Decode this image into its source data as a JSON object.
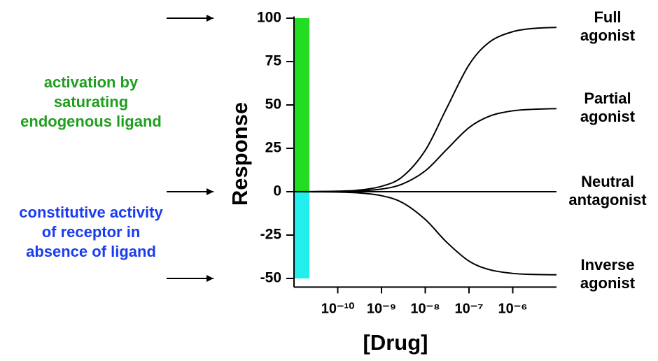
{
  "chart_data": {
    "type": "line",
    "x_label": "[Drug]",
    "y_label": "Response",
    "xscale": "log",
    "xlim": [
      1e-11,
      1e-05
    ],
    "xticks": [
      {
        "value": 1e-10,
        "label": "10⁻¹⁰"
      },
      {
        "value": 1e-09,
        "label": "10⁻⁹"
      },
      {
        "value": 1e-08,
        "label": "10⁻⁸"
      },
      {
        "value": 1e-07,
        "label": "10⁻⁷"
      },
      {
        "value": 1e-06,
        "label": "10⁻⁶"
      }
    ],
    "ylim": [
      -55,
      101
    ],
    "yticks": [
      -50,
      -25,
      0,
      25,
      50,
      75,
      100
    ],
    "x": [
      1e-11,
      3e-11,
      1e-10,
      3e-10,
      1e-09,
      3e-09,
      1e-08,
      3e-08,
      1e-07,
      3e-07,
      1e-06,
      3e-06,
      1e-05
    ],
    "series": [
      {
        "name": "Full agonist",
        "color": "#000000",
        "values": [
          0,
          0.1,
          0.3,
          0.9,
          3.1,
          8.6,
          23.8,
          47.5,
          73.1,
          86.4,
          92.2,
          94.1,
          94.7
        ]
      },
      {
        "name": "Partial agonist",
        "color": "#000000",
        "values": [
          0,
          0,
          0.2,
          0.5,
          1.5,
          4.4,
          12,
          24,
          36.9,
          43.6,
          46.6,
          47.5,
          47.9
        ]
      },
      {
        "name": "Neutral antagonist",
        "color": "#000000",
        "values": [
          0,
          0,
          0,
          0,
          0,
          0,
          0,
          0,
          0,
          0,
          0,
          0,
          0
        ]
      },
      {
        "name": "Inverse agonist",
        "color": "#000000",
        "values": [
          0,
          -0.1,
          -0.2,
          -0.7,
          -2.3,
          -6.3,
          -16,
          -28.8,
          -40,
          -45,
          -47.1,
          -47.7,
          -47.9
        ]
      }
    ],
    "bands": [
      {
        "color": "#22dd22",
        "from": 0,
        "to": 100
      },
      {
        "color": "#22eeee",
        "from": 0,
        "to": -50
      }
    ],
    "arrow_levels": [
      100,
      0,
      -50
    ],
    "annotations": [
      {
        "lines": [
          "activation by",
          "saturating",
          "endogenous ligand"
        ],
        "color": "#1f9e1f"
      },
      {
        "lines": [
          "constitutive activity",
          "of receptor in",
          "absence of ligand"
        ],
        "color": "#1a3cf0"
      }
    ]
  }
}
